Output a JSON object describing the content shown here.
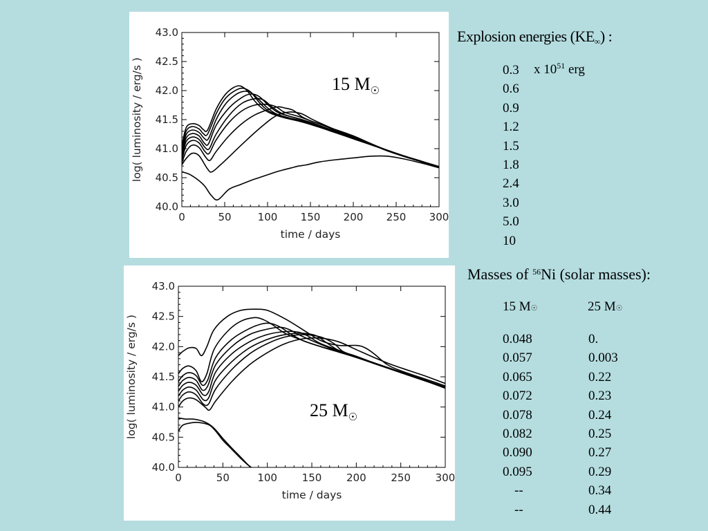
{
  "chart_data": [
    {
      "type": "line",
      "label": "15 M",
      "xlabel": "time / days",
      "ylabel": "log( luminosity / erg/s )",
      "xlim": [
        0,
        300
      ],
      "ylim": [
        40.0,
        43.0
      ],
      "xticks": [
        "0",
        "50",
        "100",
        "150",
        "200",
        "250",
        "300"
      ],
      "yticks": [
        "43.0",
        "42.5",
        "42.0",
        "41.5",
        "41.0",
        "40.5",
        "40.0"
      ],
      "series": [
        {
          "x": [
            0,
            5,
            10,
            20,
            27,
            34,
            42,
            55,
            68,
            80,
            90,
            100,
            110,
            120,
            128,
            136,
            145,
            160,
            180,
            200,
            220,
            240,
            260,
            280,
            300
          ],
          "values": [
            40.6,
            40.58,
            40.55,
            40.45,
            40.35,
            40.2,
            40.12,
            40.3,
            40.38,
            40.45,
            40.5,
            40.55,
            40.6,
            40.64,
            40.67,
            40.7,
            40.72,
            40.77,
            40.81,
            40.84,
            40.87,
            40.87,
            40.82,
            40.75,
            40.67
          ]
        },
        {
          "x": [
            0,
            5,
            12,
            20,
            30,
            35,
            45,
            60,
            75,
            90,
            105,
            115,
            125,
            130,
            140,
            150,
            160,
            180,
            200,
            220,
            240,
            260,
            280,
            300
          ],
          "values": [
            40.72,
            40.83,
            40.92,
            40.88,
            40.65,
            40.6,
            40.72,
            40.93,
            41.14,
            41.34,
            41.52,
            41.6,
            41.63,
            41.63,
            41.6,
            41.52,
            41.45,
            41.32,
            41.2,
            41.08,
            40.96,
            40.86,
            40.77,
            40.68
          ]
        },
        {
          "x": [
            0,
            5,
            12,
            20,
            28,
            33,
            40,
            55,
            70,
            85,
            100,
            112,
            120,
            130,
            140,
            150,
            160,
            175,
            200,
            220,
            240,
            260,
            280,
            300
          ],
          "values": [
            40.75,
            40.95,
            41.06,
            41.02,
            40.85,
            40.8,
            40.95,
            41.22,
            41.43,
            41.58,
            41.67,
            41.72,
            41.7,
            41.66,
            41.55,
            41.48,
            41.43,
            41.35,
            41.22,
            41.09,
            40.97,
            40.87,
            40.78,
            40.68
          ]
        },
        {
          "x": [
            0,
            5,
            12,
            20,
            27,
            32,
            40,
            55,
            70,
            85,
            100,
            110,
            118,
            125,
            135,
            150,
            165,
            185,
            200,
            220,
            240,
            260,
            280,
            300
          ],
          "values": [
            40.8,
            41.05,
            41.14,
            41.1,
            40.95,
            40.92,
            41.15,
            41.45,
            41.65,
            41.75,
            41.76,
            41.72,
            41.64,
            41.6,
            41.56,
            41.48,
            41.4,
            41.28,
            41.2,
            41.08,
            40.97,
            40.87,
            40.78,
            40.69
          ]
        },
        {
          "x": [
            0,
            5,
            12,
            20,
            27,
            32,
            40,
            55,
            70,
            85,
            95,
            105,
            115,
            125,
            140,
            155,
            175,
            200,
            220,
            240,
            260,
            280,
            300
          ],
          "values": [
            40.85,
            41.12,
            41.2,
            41.16,
            41.02,
            41.0,
            41.25,
            41.57,
            41.78,
            41.86,
            41.84,
            41.72,
            41.62,
            41.56,
            41.5,
            41.43,
            41.32,
            41.19,
            41.08,
            40.97,
            40.87,
            40.78,
            40.69
          ]
        },
        {
          "x": [
            0,
            5,
            12,
            20,
            26,
            31,
            40,
            55,
            70,
            80,
            90,
            100,
            110,
            120,
            140,
            160,
            180,
            200,
            220,
            240,
            260,
            280,
            300
          ],
          "values": [
            40.9,
            41.18,
            41.26,
            41.22,
            41.1,
            41.08,
            41.4,
            41.7,
            41.88,
            41.94,
            41.9,
            41.76,
            41.64,
            41.58,
            41.5,
            41.39,
            41.29,
            41.19,
            41.08,
            40.97,
            40.87,
            40.78,
            40.69
          ]
        },
        {
          "x": [
            0,
            5,
            12,
            20,
            26,
            31,
            40,
            50,
            60,
            70,
            80,
            90,
            100,
            110,
            125,
            140,
            160,
            180,
            200,
            220,
            240,
            260,
            280,
            300
          ],
          "values": [
            40.95,
            41.24,
            41.32,
            41.28,
            41.18,
            41.17,
            41.5,
            41.75,
            41.9,
            41.98,
            41.97,
            41.84,
            41.7,
            41.6,
            41.53,
            41.48,
            41.38,
            41.28,
            41.18,
            41.07,
            40.97,
            40.87,
            40.78,
            40.69
          ]
        },
        {
          "x": [
            0,
            5,
            12,
            20,
            25,
            30,
            40,
            50,
            60,
            70,
            80,
            90,
            100,
            110,
            125,
            140,
            160,
            180,
            200,
            220,
            240,
            260,
            280,
            300
          ],
          "values": [
            41.0,
            41.3,
            41.38,
            41.34,
            41.26,
            41.25,
            41.6,
            41.85,
            41.98,
            42.04,
            41.98,
            41.8,
            41.66,
            41.59,
            41.52,
            41.47,
            41.38,
            41.28,
            41.17,
            41.07,
            40.97,
            40.87,
            40.78,
            40.68
          ]
        },
        {
          "x": [
            0,
            5,
            12,
            20,
            25,
            30,
            40,
            50,
            60,
            68,
            76,
            85,
            95,
            105,
            120,
            140,
            160,
            180,
            200,
            220,
            240,
            260,
            280,
            300
          ],
          "values": [
            41.05,
            41.36,
            41.43,
            41.4,
            41.33,
            41.32,
            41.68,
            41.92,
            42.05,
            42.08,
            42.0,
            41.82,
            41.68,
            41.6,
            41.53,
            41.46,
            41.37,
            41.27,
            41.17,
            41.07,
            40.97,
            40.87,
            40.78,
            40.68
          ]
        }
      ]
    },
    {
      "type": "line",
      "label": "25 M",
      "xlabel": "time / days",
      "ylabel": "log( luminosity / erg/s )",
      "xlim": [
        0,
        300
      ],
      "ylim": [
        40.0,
        43.0
      ],
      "xticks": [
        "0",
        "50",
        "100",
        "150",
        "200",
        "250",
        "300"
      ],
      "yticks": [
        "43.0",
        "42.5",
        "42.0",
        "41.5",
        "41.0",
        "40.5",
        "40.0"
      ],
      "series": [
        {
          "x": [
            0,
            5,
            15,
            25,
            35,
            42,
            50,
            60,
            70,
            80,
            88
          ],
          "values": [
            40.6,
            40.7,
            40.74,
            40.74,
            40.7,
            40.6,
            40.45,
            40.3,
            40.15,
            40.02,
            39.95
          ]
        },
        {
          "x": [
            0,
            8,
            16,
            24,
            30,
            36,
            42,
            50,
            60,
            70,
            80,
            88
          ],
          "values": [
            40.82,
            40.8,
            40.8,
            40.78,
            40.75,
            40.7,
            40.62,
            40.48,
            40.32,
            40.17,
            40.02,
            39.95
          ]
        },
        {
          "x": [
            0,
            5,
            12,
            20,
            30,
            35,
            42,
            60,
            80,
            100,
            120,
            140,
            160,
            180,
            200,
            220,
            240,
            260,
            280,
            300
          ],
          "values": [
            41.0,
            41.1,
            41.15,
            41.12,
            41.0,
            40.95,
            41.1,
            41.42,
            41.7,
            41.9,
            42.05,
            42.13,
            42.14,
            42.08,
            41.95,
            41.82,
            41.7,
            41.6,
            41.5,
            41.39
          ]
        },
        {
          "x": [
            0,
            5,
            12,
            20,
            28,
            34,
            42,
            60,
            80,
            100,
            120,
            140,
            160,
            175,
            185,
            200,
            220,
            240,
            260,
            280,
            300
          ],
          "values": [
            41.1,
            41.2,
            41.25,
            41.2,
            41.05,
            41.05,
            41.3,
            41.62,
            41.88,
            42.05,
            42.16,
            42.2,
            42.16,
            42.05,
            41.92,
            41.84,
            41.73,
            41.62,
            41.52,
            41.42,
            41.32
          ]
        },
        {
          "x": [
            0,
            5,
            12,
            20,
            28,
            34,
            42,
            60,
            80,
            100,
            120,
            140,
            155,
            165,
            180,
            200,
            220,
            240,
            260,
            280,
            300
          ],
          "values": [
            41.18,
            41.28,
            41.33,
            41.28,
            41.12,
            41.15,
            41.45,
            41.75,
            41.98,
            42.12,
            42.2,
            42.22,
            42.18,
            42.08,
            41.94,
            41.83,
            41.72,
            41.62,
            41.52,
            41.42,
            41.32
          ]
        },
        {
          "x": [
            0,
            5,
            12,
            20,
            28,
            34,
            42,
            60,
            80,
            100,
            120,
            135,
            145,
            160,
            180,
            200,
            220,
            240,
            260,
            280,
            300
          ],
          "values": [
            41.26,
            41.36,
            41.41,
            41.36,
            41.2,
            41.25,
            41.58,
            41.88,
            42.08,
            42.2,
            42.25,
            42.24,
            42.18,
            42.05,
            41.94,
            41.83,
            41.72,
            41.62,
            41.52,
            41.42,
            41.32
          ]
        },
        {
          "x": [
            0,
            5,
            12,
            20,
            27,
            33,
            42,
            60,
            80,
            100,
            115,
            125,
            135,
            150,
            170,
            190,
            210,
            230,
            250,
            270,
            300
          ],
          "values": [
            41.34,
            41.44,
            41.49,
            41.44,
            41.28,
            41.35,
            41.7,
            42.0,
            42.2,
            42.29,
            42.32,
            42.28,
            42.2,
            42.1,
            41.98,
            41.88,
            41.78,
            41.68,
            41.58,
            41.48,
            41.33
          ]
        },
        {
          "x": [
            0,
            5,
            12,
            20,
            27,
            33,
            42,
            60,
            80,
            95,
            105,
            115,
            125,
            140,
            160,
            180,
            200,
            220,
            240,
            260,
            280,
            300
          ],
          "values": [
            41.42,
            41.52,
            41.57,
            41.52,
            41.36,
            41.45,
            41.82,
            42.12,
            42.3,
            42.38,
            42.38,
            42.32,
            42.22,
            42.1,
            42.0,
            41.92,
            41.83,
            41.73,
            41.63,
            41.53,
            41.43,
            41.32
          ]
        },
        {
          "x": [
            0,
            5,
            12,
            20,
            26,
            32,
            40,
            55,
            70,
            85,
            95,
            105,
            120,
            140,
            160,
            180,
            200,
            220,
            240,
            260,
            280,
            300
          ],
          "values": [
            41.55,
            41.64,
            41.68,
            41.6,
            41.42,
            41.55,
            41.95,
            42.25,
            42.42,
            42.48,
            42.45,
            42.37,
            42.22,
            42.1,
            42.0,
            41.91,
            41.82,
            41.72,
            41.62,
            41.52,
            41.42,
            41.31
          ]
        },
        {
          "x": [
            0,
            5,
            12,
            20,
            26,
            32,
            40,
            55,
            70,
            85,
            100,
            120,
            140,
            160,
            180,
            200,
            210,
            220,
            235,
            250,
            270,
            300
          ],
          "values": [
            41.85,
            41.92,
            41.98,
            41.97,
            41.85,
            42.0,
            42.28,
            42.5,
            42.6,
            42.62,
            42.6,
            42.46,
            42.28,
            42.1,
            42.02,
            42.02,
            41.98,
            41.88,
            41.7,
            41.6,
            41.5,
            41.35
          ]
        }
      ]
    }
  ],
  "labels": {
    "top_mass": "15 M",
    "bottom_mass": "25 M",
    "sun_symbol": "☉"
  },
  "energies": {
    "heading_pre": "Explosion energies  (KE",
    "heading_sub": "∞",
    "heading_post": ") :",
    "unit_pre": "x 10",
    "unit_exp": "51",
    "unit_post": " erg",
    "values": [
      "0.3",
      "0.6",
      "0.9",
      "1.2",
      "1.5",
      "1.8",
      "2.4",
      "3.0",
      "5.0",
      "10"
    ]
  },
  "nickel": {
    "heading_pre": "Masses of ",
    "heading_sup": "56",
    "heading_post": "Ni (solar masses):",
    "col15": "15 M",
    "col25": "25 M",
    "values15": [
      "0.048",
      "0.057",
      "0.065",
      "0.072",
      "0.078",
      "0.082",
      "0.090",
      "0.095",
      "--",
      "--"
    ],
    "values25": [
      "0.",
      "0.003",
      "0.22",
      "0.23",
      "0.24",
      "0.25",
      "0.27",
      "0.29",
      "0.34",
      "0.44"
    ]
  }
}
